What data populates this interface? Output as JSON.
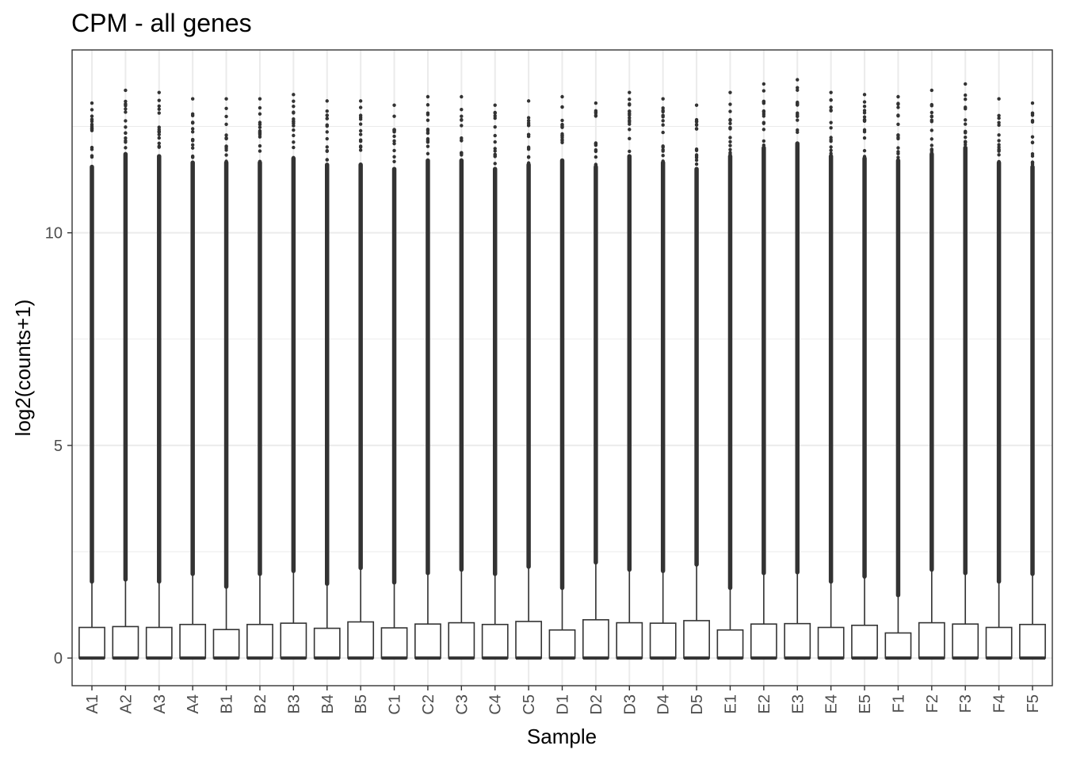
{
  "chart_data": {
    "type": "boxplot",
    "title": "CPM - all genes",
    "xlabel": "Sample",
    "ylabel": "log2(counts+1)",
    "ylim": [
      -0.65,
      14.3
    ],
    "y_ticks": [
      0,
      5,
      10
    ],
    "grid": true,
    "theme": "black-and-white panel with light grey grid",
    "categories": [
      "A1",
      "A2",
      "A3",
      "A4",
      "B1",
      "B2",
      "B3",
      "B4",
      "B5",
      "C1",
      "C2",
      "C3",
      "C4",
      "C5",
      "D1",
      "D2",
      "D3",
      "D4",
      "D5",
      "E1",
      "E2",
      "E3",
      "E4",
      "E5",
      "F1",
      "F2",
      "F3",
      "F4",
      "F5"
    ],
    "boxes": [
      {
        "sample": "A1",
        "q1": 0,
        "median": 0,
        "q3": 0.72,
        "whisker_high": 1.8,
        "max": 13.05
      },
      {
        "sample": "A2",
        "q1": 0,
        "median": 0,
        "q3": 0.74,
        "whisker_high": 1.85,
        "max": 13.35
      },
      {
        "sample": "A3",
        "q1": 0,
        "median": 0,
        "q3": 0.72,
        "whisker_high": 1.8,
        "max": 13.3
      },
      {
        "sample": "A4",
        "q1": 0,
        "median": 0,
        "q3": 0.79,
        "whisker_high": 1.98,
        "max": 13.15
      },
      {
        "sample": "B1",
        "q1": 0,
        "median": 0,
        "q3": 0.67,
        "whisker_high": 1.68,
        "max": 13.15
      },
      {
        "sample": "B2",
        "q1": 0,
        "median": 0,
        "q3": 0.79,
        "whisker_high": 1.98,
        "max": 13.15
      },
      {
        "sample": "B3",
        "q1": 0,
        "median": 0,
        "q3": 0.82,
        "whisker_high": 2.05,
        "max": 13.25
      },
      {
        "sample": "B4",
        "q1": 0,
        "median": 0,
        "q3": 0.7,
        "whisker_high": 1.75,
        "max": 13.1
      },
      {
        "sample": "B5",
        "q1": 0,
        "median": 0,
        "q3": 0.85,
        "whisker_high": 2.12,
        "max": 13.1
      },
      {
        "sample": "C1",
        "q1": 0,
        "median": 0,
        "q3": 0.71,
        "whisker_high": 1.78,
        "max": 13.0
      },
      {
        "sample": "C2",
        "q1": 0,
        "median": 0,
        "q3": 0.8,
        "whisker_high": 2.0,
        "max": 13.2
      },
      {
        "sample": "C3",
        "q1": 0,
        "median": 0,
        "q3": 0.83,
        "whisker_high": 2.08,
        "max": 13.2
      },
      {
        "sample": "C4",
        "q1": 0,
        "median": 0,
        "q3": 0.79,
        "whisker_high": 1.98,
        "max": 13.0
      },
      {
        "sample": "C5",
        "q1": 0,
        "median": 0,
        "q3": 0.86,
        "whisker_high": 2.15,
        "max": 13.1
      },
      {
        "sample": "D1",
        "q1": 0,
        "median": 0,
        "q3": 0.66,
        "whisker_high": 1.65,
        "max": 13.2
      },
      {
        "sample": "D2",
        "q1": 0,
        "median": 0,
        "q3": 0.9,
        "whisker_high": 2.25,
        "max": 13.05
      },
      {
        "sample": "D3",
        "q1": 0,
        "median": 0,
        "q3": 0.83,
        "whisker_high": 2.08,
        "max": 13.3
      },
      {
        "sample": "D4",
        "q1": 0,
        "median": 0,
        "q3": 0.82,
        "whisker_high": 2.05,
        "max": 13.15
      },
      {
        "sample": "D5",
        "q1": 0,
        "median": 0,
        "q3": 0.88,
        "whisker_high": 2.2,
        "max": 13.0
      },
      {
        "sample": "E1",
        "q1": 0,
        "median": 0,
        "q3": 0.66,
        "whisker_high": 1.65,
        "max": 13.3
      },
      {
        "sample": "E2",
        "q1": 0,
        "median": 0,
        "q3": 0.8,
        "whisker_high": 2.0,
        "max": 13.5
      },
      {
        "sample": "E3",
        "q1": 0,
        "median": 0,
        "q3": 0.81,
        "whisker_high": 2.02,
        "max": 13.6
      },
      {
        "sample": "E4",
        "q1": 0,
        "median": 0,
        "q3": 0.72,
        "whisker_high": 1.8,
        "max": 13.3
      },
      {
        "sample": "E5",
        "q1": 0,
        "median": 0,
        "q3": 0.77,
        "whisker_high": 1.92,
        "max": 13.25
      },
      {
        "sample": "F1",
        "q1": 0,
        "median": 0,
        "q3": 0.59,
        "whisker_high": 1.48,
        "max": 13.2
      },
      {
        "sample": "F2",
        "q1": 0,
        "median": 0,
        "q3": 0.83,
        "whisker_high": 2.08,
        "max": 13.35
      },
      {
        "sample": "F3",
        "q1": 0,
        "median": 0,
        "q3": 0.8,
        "whisker_high": 2.0,
        "max": 13.5
      },
      {
        "sample": "F4",
        "q1": 0,
        "median": 0,
        "q3": 0.72,
        "whisker_high": 1.8,
        "max": 13.15
      },
      {
        "sample": "F5",
        "q1": 0,
        "median": 0,
        "q3": 0.79,
        "whisker_high": 1.98,
        "max": 13.05
      }
    ],
    "colors": {
      "box_stroke": "#333333",
      "grid": "#ebebeb",
      "panel_border": "#333333",
      "background": "#ffffff"
    }
  }
}
